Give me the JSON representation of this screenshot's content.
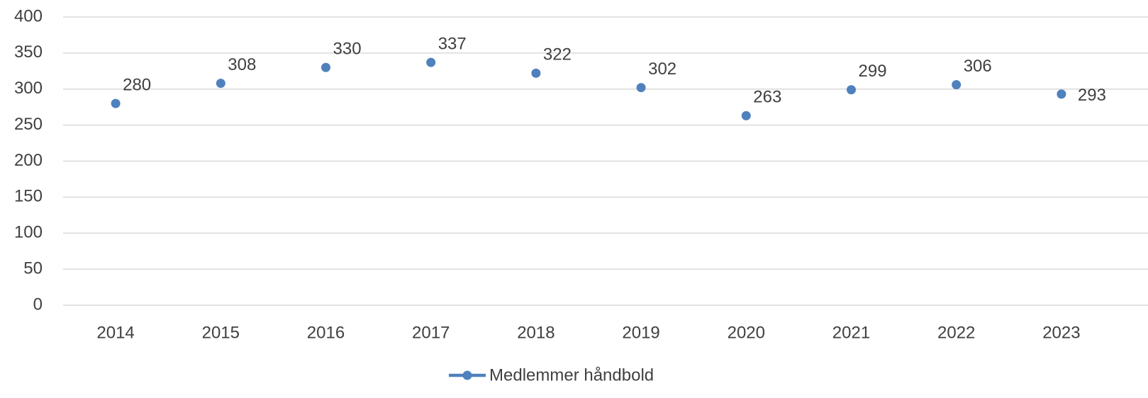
{
  "chart_data": {
    "type": "line",
    "categories": [
      "2014",
      "2015",
      "2016",
      "2017",
      "2018",
      "2019",
      "2020",
      "2021",
      "2022",
      "2023"
    ],
    "series": [
      {
        "name": "Medlemmer håndbold",
        "color": "#4f81bd",
        "values": [
          280,
          308,
          330,
          337,
          322,
          302,
          263,
          299,
          306,
          293
        ]
      }
    ],
    "ylim": [
      0,
      400
    ],
    "yticks": [
      0,
      50,
      100,
      150,
      200,
      250,
      300,
      350,
      400
    ],
    "grid": true,
    "legend": "bottom",
    "data_labels": true
  }
}
